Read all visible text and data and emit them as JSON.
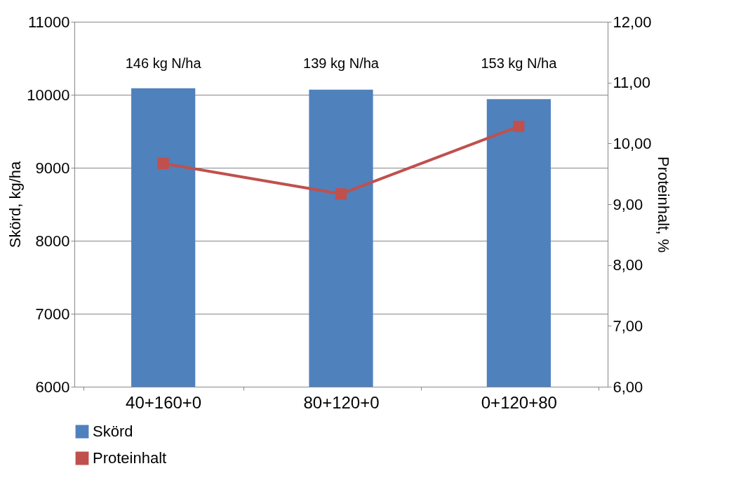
{
  "chart_data": {
    "type": "bar",
    "categories": [
      "40+160+0",
      "80+120+0",
      "0+120+80"
    ],
    "series": [
      {
        "name": "Skörd",
        "color": "#4f81bd",
        "values": [
          10090,
          10070,
          9940
        ]
      },
      {
        "name": "Proteinhalt",
        "type": "line",
        "axis": "y2",
        "color": "#c0504d",
        "values": [
          9.67,
          9.17,
          10.28
        ]
      }
    ],
    "ylabel": "Skörd, kg/ha",
    "y2label": "Proteinhalt, %",
    "ylim": [
      6000,
      11000
    ],
    "yticks": [
      6000,
      7000,
      8000,
      9000,
      10000,
      11000
    ],
    "y2lim": [
      6,
      12
    ],
    "y2ticks": [
      {
        "value": 6,
        "label": "6,00"
      },
      {
        "value": 7,
        "label": "7,00"
      },
      {
        "value": 8,
        "label": "8,00"
      },
      {
        "value": 9,
        "label": "9,00"
      },
      {
        "value": 10,
        "label": "10,00"
      },
      {
        "value": 11,
        "label": "11,00"
      },
      {
        "value": 12,
        "label": "12,00"
      }
    ],
    "annotations": [
      "146 kg N/ha",
      "139 kg N/ha",
      "153 kg N/ha"
    ],
    "grid": "y",
    "legend": "bottom",
    "marker": "square",
    "line_style": "solid"
  }
}
